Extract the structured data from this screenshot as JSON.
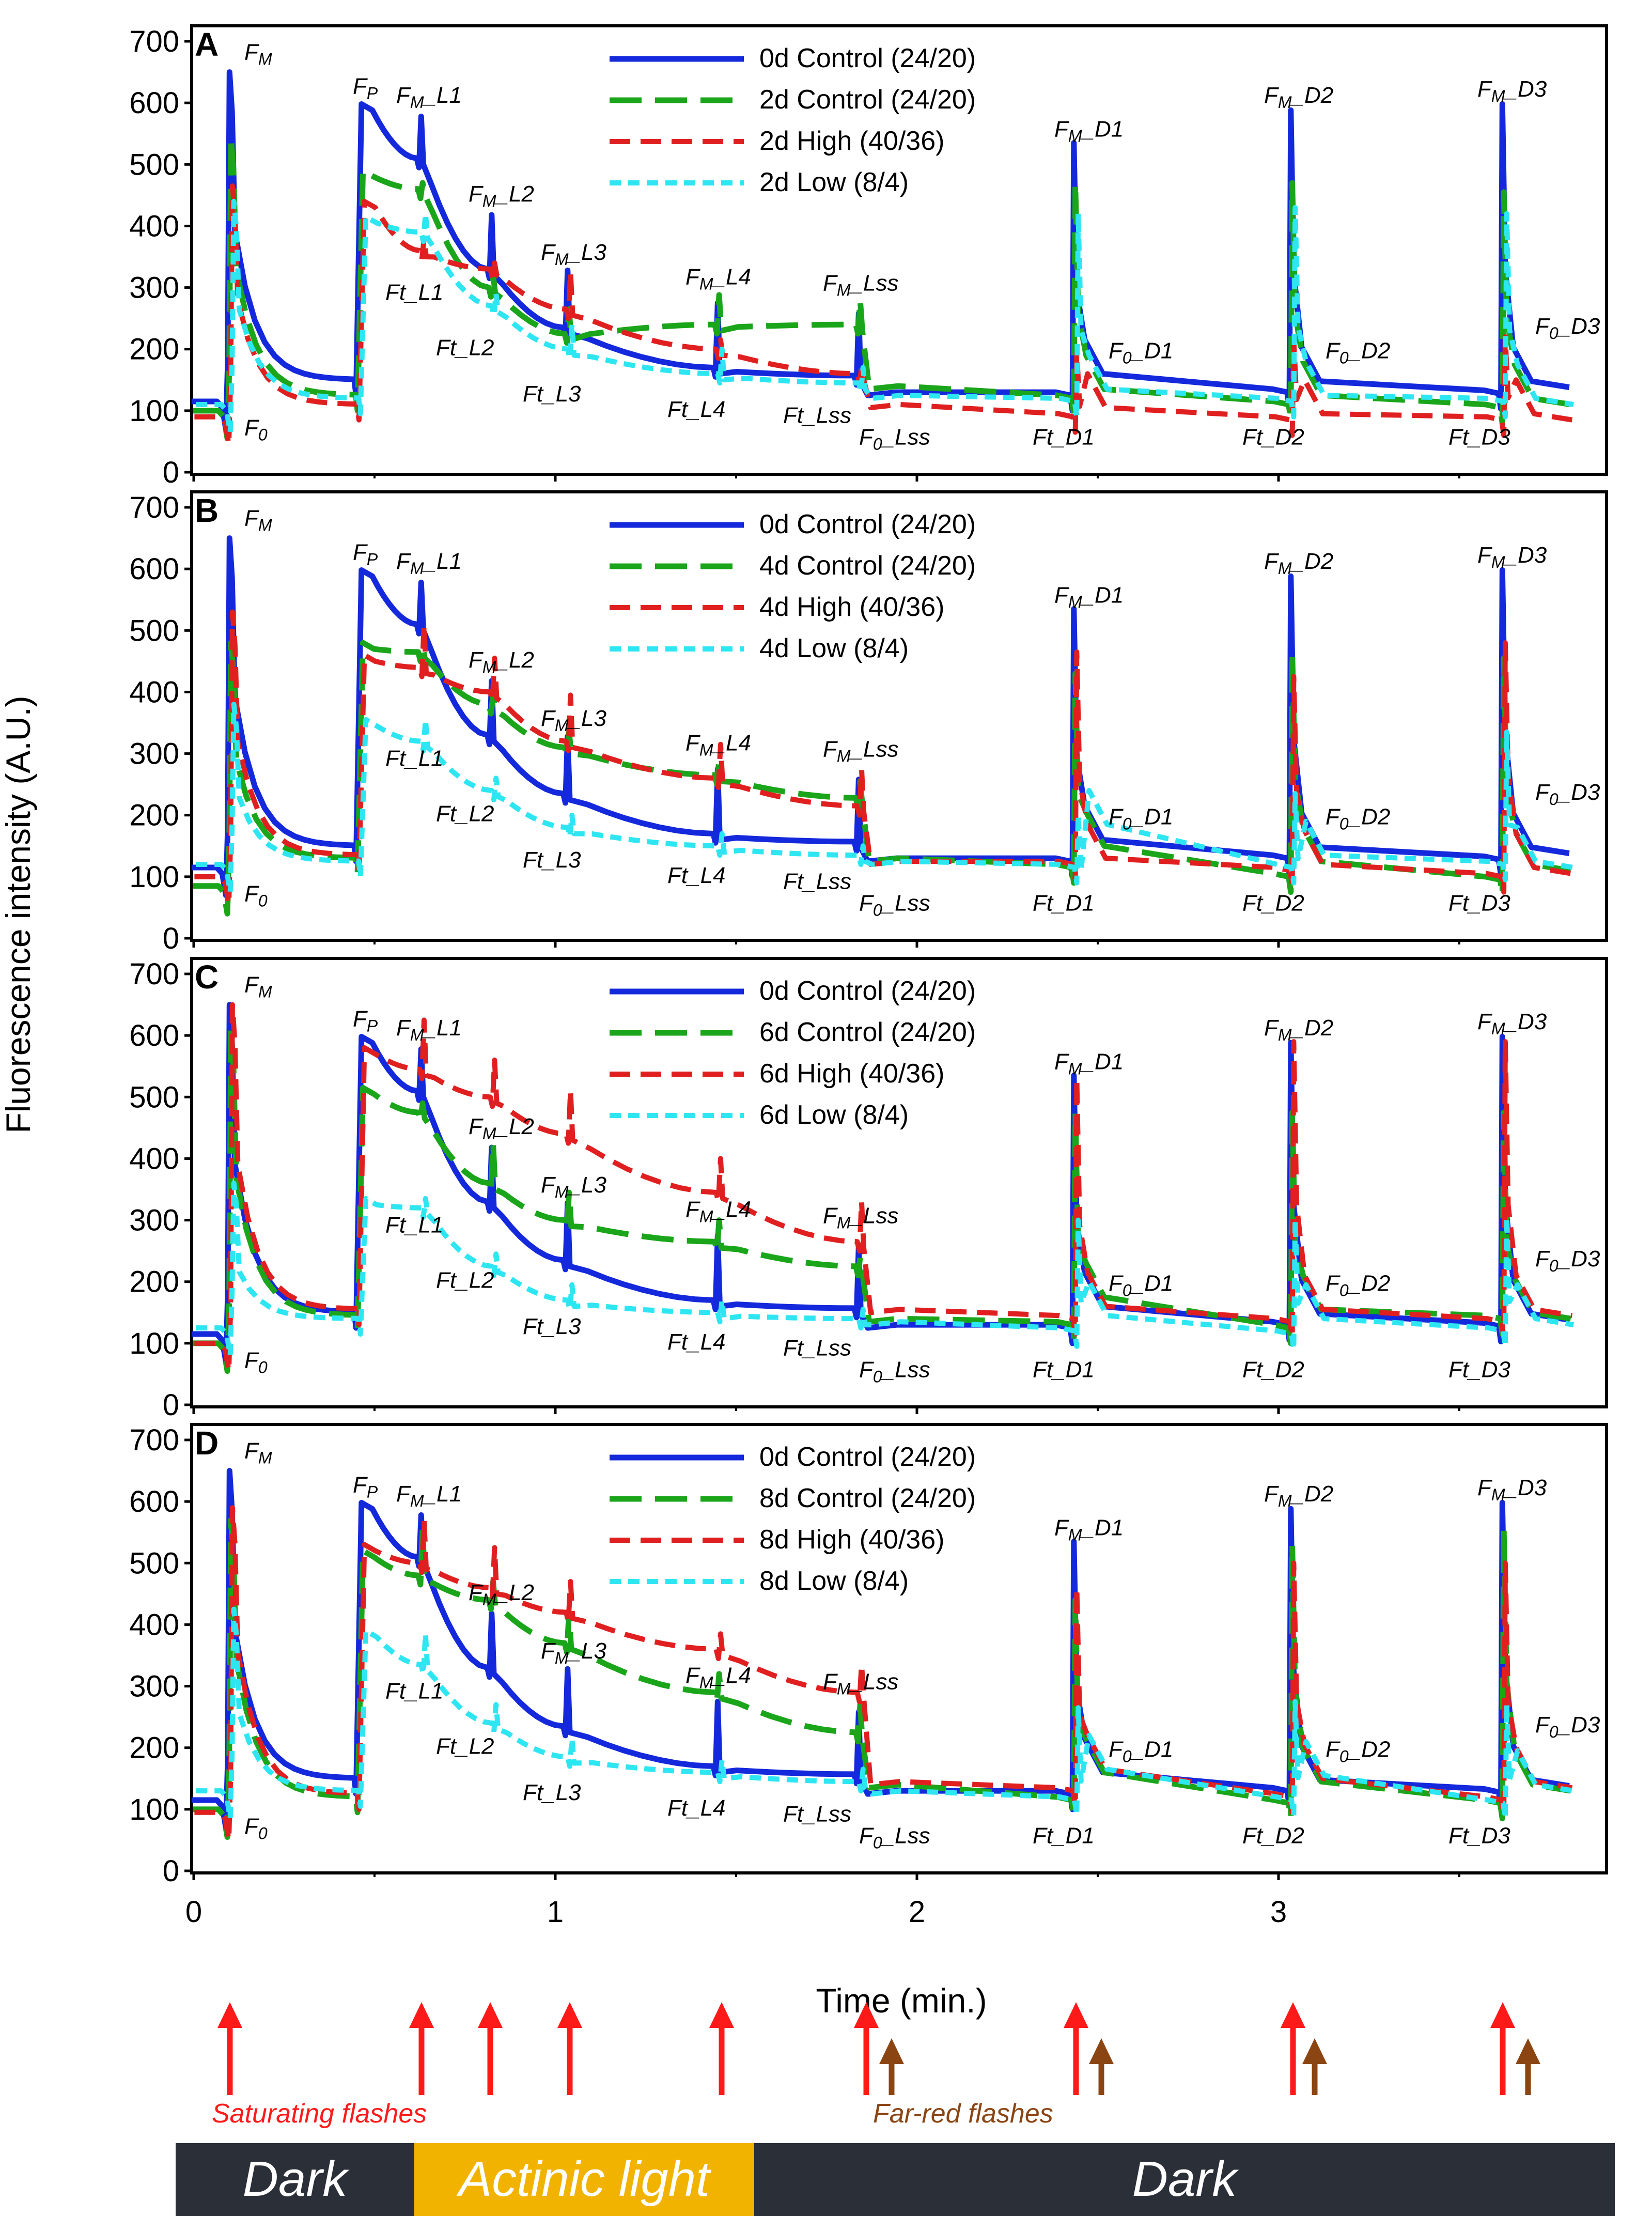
{
  "chart_data": {
    "type": "line",
    "ylabel": "Fluorescence intensity (A.U.)",
    "xlabel": "Time (min.)",
    "xlim": [
      0,
      3.82
    ],
    "ylim": [
      0,
      700
    ],
    "x_ticks": [
      "0",
      "1",
      "2",
      "3"
    ],
    "y_ticks": [
      "0",
      "100",
      "200",
      "300",
      "400",
      "500",
      "600",
      "700"
    ],
    "colors": {
      "s0": "#1428dc",
      "s1": "#1aa51a",
      "s2": "#e02020",
      "s3": "#2ee6f2"
    },
    "panels": [
      {
        "label": "A",
        "series": [
          {
            "name": "0d Control (24/20)",
            "F0": 115,
            "Fm": 650,
            "preFp": 150,
            "Fp": 598,
            "Ft": [
              510,
              330,
              235,
              170,
              157
            ],
            "Fm_L": [
              578,
              418,
              328,
              275,
              258
            ],
            "Lss_dip": 125,
            "F0_D": [
              160,
              148,
              148
            ],
            "Ft_D": [
              125,
              130,
              128
            ],
            "Fm_D": [
              535,
              588,
              598
            ]
          },
          {
            "name": "2d Control (24/20)",
            "F0": 100,
            "Fm": 545,
            "preFp": 125,
            "Fp": 490,
            "Ft": [
              460,
              300,
              225,
              240,
              240
            ],
            "Fm_L": [
              470,
              320,
              265,
              288,
              280
            ],
            "Lss_dip": 135,
            "F0_D": [
              135,
              125,
              120
            ],
            "Ft_D": [
              120,
              110,
              105
            ],
            "Fm_D": [
              470,
              470,
              455
            ]
          },
          {
            "name": "2d High (40/36)",
            "F0": 90,
            "Fm": 465,
            "preFp": 110,
            "Fp": 440,
            "Ft": [
              360,
              330,
              265,
              200,
              160
            ],
            "Fm_L": [
              380,
              340,
              325,
              215,
              170
            ],
            "Lss_dip": 105,
            "F0_D": [
              105,
              95,
              95
            ],
            "Ft_D": [
              90,
              85,
              85
            ],
            "Fm_D": [
              195,
              215,
              220
            ]
          },
          {
            "name": "2d Low (8/4)",
            "F0": 110,
            "Fm": 440,
            "preFp": 120,
            "Fp": 415,
            "Ft": [
              390,
              270,
              200,
              160,
              145
            ],
            "Fm_L": [
              420,
              290,
              240,
              200,
              170
            ],
            "Lss_dip": 120,
            "F0_D": [
              135,
              125,
              120
            ],
            "Ft_D": [
              115,
              115,
              115
            ],
            "Fm_D": [
              420,
              430,
              420
            ]
          }
        ],
        "annotations": [
          "F_M",
          "F_P",
          "F_0",
          "F_M_L1",
          "F_M_L2",
          "F_M_L3",
          "F_M_L4",
          "F_M_Lss",
          "F_M_D1",
          "F_M_D2",
          "F_M_D3",
          "Ft_L1",
          "Ft_L2",
          "Ft_L3",
          "Ft_L4",
          "Ft_Lss",
          "F_0_Lss",
          "Ft_D1",
          "Ft_D2",
          "Ft_D3",
          "F_0_D1",
          "F_0_D2",
          "F_0_D3"
        ]
      },
      {
        "label": "B",
        "series": [
          {
            "name": "0d Control (24/20)",
            "F0": 115,
            "Fm": 650,
            "preFp": 150,
            "Fp": 598,
            "Ft": [
              510,
              330,
              235,
              170,
              157
            ],
            "Fm_L": [
              578,
              418,
              328,
              275,
              258
            ],
            "Lss_dip": 125,
            "F0_D": [
              160,
              148,
              148
            ],
            "Ft_D": [
              125,
              130,
              128
            ],
            "Fm_D": [
              535,
              588,
              598
            ]
          },
          {
            "name": "4d Control (24/20)",
            "F0": 85,
            "Fm": 480,
            "preFp": 130,
            "Fp": 480,
            "Ft": [
              465,
              380,
              310,
              265,
              228
            ],
            "Fm_L": [
              475,
              395,
              335,
              290,
              255
            ],
            "Lss_dip": 125,
            "F0_D": [
              150,
              125,
              120
            ],
            "Ft_D": [
              115,
              100,
              95
            ],
            "Fm_D": [
              430,
              465,
              455
            ]
          },
          {
            "name": "4d High (40/36)",
            "F0": 100,
            "Fm": 530,
            "preFp": 135,
            "Fp": 460,
            "Ft": [
              440,
              400,
              320,
              260,
              215
            ],
            "Fm_L": [
              510,
              455,
              395,
              315,
              275
            ],
            "Lss_dip": 120,
            "F0_D": [
              130,
              120,
              115
            ],
            "Ft_D": [
              120,
              110,
              100
            ],
            "Fm_D": [
              465,
              425,
              480
            ]
          },
          {
            "name": "4d Low (8/4)",
            "F0": 120,
            "Fm": 380,
            "preFp": 125,
            "Fp": 355,
            "Ft": [
              320,
              240,
              180,
              150,
              135
            ],
            "Fm_L": [
              355,
              260,
              200,
              170,
              150
            ],
            "Lss_dip": 120,
            "F0_D": [
              185,
              135,
              125
            ],
            "Ft_D": [
              115,
              115,
              120
            ],
            "Fm_D": [
              200,
              235,
              335
            ]
          }
        ],
        "annotations": [
          "F_M",
          "F_P",
          "F_0",
          "F_M_L1",
          "F_M_L2",
          "F_M_L3",
          "F_M_L4",
          "F_M_Lss",
          "F_M_D1",
          "F_M_D2",
          "F_M_D3",
          "Ft_L1",
          "Ft_L2",
          "Ft_L3",
          "Ft_L4",
          "Ft_Lss",
          "F_0_Lss",
          "Ft_D1",
          "Ft_D2",
          "Ft_D3",
          "F_0_D1",
          "F_0_D2",
          "F_0_D3"
        ]
      },
      {
        "label": "C",
        "series": [
          {
            "name": "0d Control (24/20)",
            "F0": 115,
            "Fm": 650,
            "preFp": 150,
            "Fp": 598,
            "Ft": [
              510,
              330,
              235,
              170,
              157
            ],
            "Fm_L": [
              578,
              418,
              328,
              275,
              258
            ],
            "Lss_dip": 125,
            "F0_D": [
              160,
              148,
              148
            ],
            "Ft_D": [
              125,
              130,
              128
            ],
            "Fm_D": [
              535,
              588,
              598
            ]
          },
          {
            "name": "6d Control (24/20)",
            "F0": 100,
            "Fm": 610,
            "preFp": 145,
            "Fp": 515,
            "Ft": [
              475,
              360,
              300,
              265,
              225
            ],
            "Fm_L": [
              490,
              425,
              345,
              300,
              240
            ],
            "Lss_dip": 135,
            "F0_D": [
              175,
              155,
              150
            ],
            "Ft_D": [
              130,
              125,
              140
            ],
            "Fm_D": [
              475,
              475,
              475
            ]
          },
          {
            "name": "6d High (40/36)",
            "F0": 100,
            "Fm": 650,
            "preFp": 155,
            "Fp": 580,
            "Ft": [
              545,
              500,
              440,
              345,
              265
            ],
            "Fm_L": [
              625,
              560,
              510,
              400,
              330
            ],
            "Lss_dip": 150,
            "F0_D": [
              160,
              155,
              155
            ],
            "Ft_D": [
              140,
              135,
              135
            ],
            "Fm_D": [
              530,
              590,
              590
            ]
          },
          {
            "name": "6d Low (8/4)",
            "F0": 125,
            "Fm": 360,
            "preFp": 140,
            "Fp": 335,
            "Ft": [
              320,
              225,
              170,
              150,
              140
            ],
            "Fm_L": [
              335,
              245,
              195,
              170,
              155
            ],
            "Lss_dip": 130,
            "F0_D": [
              145,
              140,
              140
            ],
            "Ft_D": [
              120,
              115,
              120
            ],
            "Fm_D": [
              300,
              300,
              305
            ]
          }
        ],
        "annotations": [
          "F_M",
          "F_P",
          "F_0",
          "F_M_L1",
          "F_M_L2",
          "F_M_L3",
          "F_M_L4",
          "F_M_Lss",
          "F_M_D1",
          "F_M_D2",
          "F_M_D3",
          "Ft_L1",
          "Ft_L2",
          "Ft_L3",
          "Ft_L4",
          "Ft_Lss",
          "F_0_Lss",
          "Ft_D1",
          "Ft_D2",
          "Ft_D3",
          "F_0_D1",
          "F_0_D2",
          "F_0_D3"
        ]
      },
      {
        "label": "D",
        "series": [
          {
            "name": "0d Control (24/20)",
            "F0": 115,
            "Fm": 650,
            "preFp": 150,
            "Fp": 598,
            "Ft": [
              510,
              330,
              235,
              170,
              157
            ],
            "Fm_L": [
              578,
              418,
              328,
              275,
              258
            ],
            "Lss_dip": 125,
            "F0_D": [
              160,
              148,
              148
            ],
            "Ft_D": [
              125,
              130,
              128
            ],
            "Fm_D": [
              535,
              588,
              598
            ]
          },
          {
            "name": "8d Control (24/20)",
            "F0": 100,
            "Fm": 570,
            "preFp": 120,
            "Fp": 520,
            "Ft": [
              480,
              440,
              370,
              290,
              225
            ],
            "Fm_L": [
              555,
              470,
              420,
              320,
              270
            ],
            "Lss_dip": 135,
            "F0_D": [
              160,
              145,
              140
            ],
            "Ft_D": [
              115,
              110,
              110
            ],
            "Fm_D": [
              440,
              530,
              555
            ]
          },
          {
            "name": "8d High (40/36)",
            "F0": 95,
            "Fm": 590,
            "preFp": 125,
            "Fp": 530,
            "Ft": [
              500,
              460,
              420,
              360,
              290
            ],
            "Fm_L": [
              570,
              525,
              470,
              385,
              335
            ],
            "Lss_dip": 140,
            "F0_D": [
              165,
              150,
              145
            ],
            "Ft_D": [
              130,
              120,
              115
            ],
            "Fm_D": [
              460,
              500,
              500
            ]
          },
          {
            "name": "8d Low (8/4)",
            "F0": 130,
            "Fm": 425,
            "preFp": 130,
            "Fp": 390,
            "Ft": [
              335,
              240,
              185,
              160,
              145
            ],
            "Fm_L": [
              385,
              270,
              215,
              180,
              165
            ],
            "Lss_dip": 125,
            "F0_D": [
              165,
              155,
              140
            ],
            "Ft_D": [
              115,
              115,
              110
            ],
            "Fm_D": [
              265,
              275,
              270
            ]
          }
        ],
        "annotations": [
          "F_M",
          "F_P",
          "F_0",
          "F_M_L1",
          "F_M_L2",
          "F_M_L3",
          "F_M_L4",
          "F_M_Lss",
          "F_M_D1",
          "F_M_D2",
          "F_M_D3",
          "Ft_L1",
          "Ft_L2",
          "Ft_L3",
          "Ft_L4",
          "Ft_Lss",
          "F_0_Lss",
          "Ft_D1",
          "Ft_D2",
          "Ft_D3",
          "F_0_D1",
          "F_0_D2",
          "F_0_D3"
        ]
      }
    ],
    "protocol": {
      "saturating_label": "Saturating flashes",
      "farred_label": "Far-red flashes",
      "saturating_times": [
        0.1,
        0.63,
        0.82,
        1.04,
        1.46,
        1.86,
        2.44,
        3.04,
        3.62
      ],
      "farred_times": [
        1.93,
        2.51,
        3.1,
        3.69
      ],
      "phases": [
        {
          "label": "Dark",
          "start": -0.05,
          "end": 0.61
        },
        {
          "label": "Actinic light",
          "start": 0.61,
          "end": 1.55
        },
        {
          "label": "Dark",
          "start": 1.55,
          "end": 3.93
        }
      ],
      "phase_colors": {
        "dark": "#2b2f38",
        "light": "#f2b300"
      },
      "saturating_color": "#ff1a1a",
      "farred_color": "#8b4513"
    }
  }
}
